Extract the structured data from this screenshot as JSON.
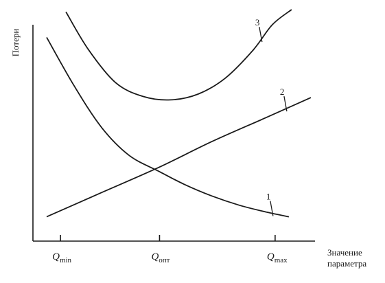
{
  "chart_data": {
    "type": "line",
    "title": "",
    "ylabel": "Потери",
    "xlabel_lines": [
      "Значение",
      "параметра"
    ],
    "xlim": [
      0,
      10
    ],
    "ylim": [
      0,
      10
    ],
    "grid": false,
    "legend": "none",
    "x_ticks": [
      {
        "x": 1.0,
        "main": "Q",
        "sub": "min"
      },
      {
        "x": 4.6,
        "main": "Q",
        "sub": "опт"
      },
      {
        "x": 8.8,
        "main": "Q",
        "sub": "max"
      }
    ],
    "series": [
      {
        "label": "1",
        "label_anchor_x": 8.7,
        "x": [
          0.5,
          1.5,
          2.5,
          3.5,
          4.6,
          5.5,
          6.5,
          7.5,
          8.5,
          9.3
        ],
        "y": [
          8.8,
          6.7,
          4.9,
          3.7,
          3.0,
          2.45,
          1.95,
          1.55,
          1.25,
          1.05
        ]
      },
      {
        "label": "2",
        "label_anchor_x": 9.2,
        "x": [
          0.5,
          2.5,
          4.6,
          6.5,
          8.5,
          10.1
        ],
        "y": [
          1.05,
          2.1,
          3.2,
          4.3,
          5.35,
          6.2
        ]
      },
      {
        "label": "3",
        "label_anchor_x": 8.3,
        "x": [
          1.2,
          2.0,
          3.0,
          4.0,
          5.0,
          6.0,
          7.0,
          8.0,
          8.7,
          9.4
        ],
        "y": [
          9.9,
          8.3,
          6.85,
          6.25,
          6.1,
          6.35,
          7.05,
          8.25,
          9.35,
          10.0
        ]
      }
    ]
  }
}
